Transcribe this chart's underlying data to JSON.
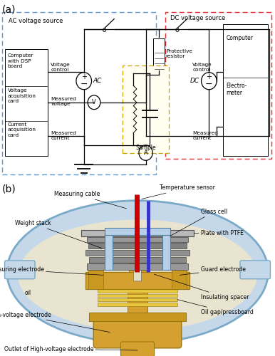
{
  "panel_a_label": "(a)",
  "panel_b_label": "(b)",
  "ac_box_label": "AC voltage source",
  "dc_box_label": "DC voltage source",
  "protective_resistor_label": "Protective\nresistor",
  "sample_label": "Sample",
  "ac_source_label": "AC",
  "dc_source_label": "DC",
  "v_meter_label": "V",
  "a_meter_label": "A",
  "dc_electrometer_text": "Electro-\nmeter",
  "dc_computer_text": "Computer",
  "ac_computer_lines": [
    "Computer\nwith DSP\nboard",
    "Voltage\nacquisition\ncard",
    "Current\nacquisition\ncard"
  ],
  "ac_side_labels": [
    "Voltage\ncontrol",
    "Measured\nvoltage",
    "Measured\ncurrent"
  ],
  "dc_side_labels": [
    "Voltage\ncontrol",
    "Measured\ncurrent"
  ],
  "b_labels": {
    "measuring_cable": "Measuring cable",
    "temperature_sensor": "Temperature sensor",
    "weight_stack": "Weight stack",
    "glass_cell": "Glass cell",
    "plate_ptfe": "Plate with PTFE",
    "measuring_electrode": "Measuring electrode",
    "guard_electrode": "Guard electrode",
    "oil": "oil",
    "insulating_spacer": "Insulating spacer",
    "high_voltage_electrode": "High-voltage electrode",
    "oil_gap": "Oil gap/pressboard",
    "outlet": "Outlet of High-voltage electrode"
  },
  "colors": {
    "ac_box": "#5b9bd5",
    "dc_box": "#e03030",
    "sample_box": "#c8a000",
    "background": "#ffffff",
    "cell_blue": "#b8cfe8",
    "electrode_gold": "#d4a030",
    "electrode_light": "#e8c050",
    "stack_gray": "#909090",
    "red_cable": "#cc0000",
    "blue_cable": "#3333cc",
    "ptfe_gray": "#a8a8a8",
    "oil_fill": "#e8e4d0"
  }
}
